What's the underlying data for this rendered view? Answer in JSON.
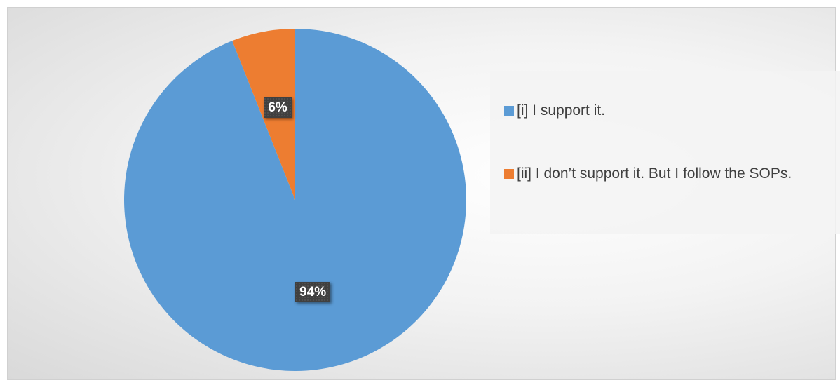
{
  "chart_data": {
    "type": "pie",
    "categories": [
      "[i] I support it.",
      "[ii] I don’t support it. But I follow the SOPs."
    ],
    "values": [
      94,
      6
    ],
    "data_labels": [
      "94%",
      "6%"
    ],
    "colors": [
      "#5B9BD5",
      "#ED7D31"
    ],
    "legend_position": "right",
    "title": ""
  }
}
